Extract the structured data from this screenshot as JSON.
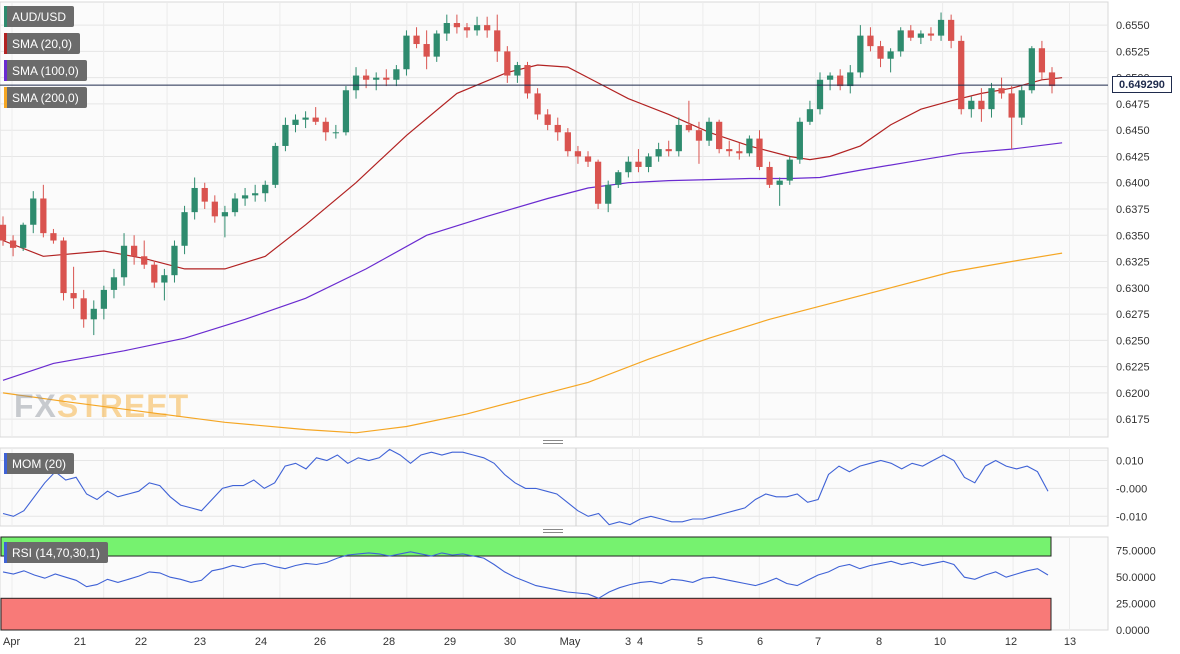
{
  "chart_data": [
    {
      "type": "candlestick",
      "symbol": "AUD/USD",
      "last_price": "0.649290",
      "y_ticks": [
        "0.6550",
        "0.6525",
        "0.6500",
        "0.6475",
        "0.6450",
        "0.6425",
        "0.6400",
        "0.6375",
        "0.6350",
        "0.6325",
        "0.6300",
        "0.6275",
        "0.6250",
        "0.6225",
        "0.6200",
        "0.6175"
      ],
      "ylim": [
        0.6158,
        0.6572
      ],
      "x_ticks": [
        "Apr",
        "21",
        "22",
        "23",
        "24",
        "26",
        "28",
        "29",
        "30",
        "May",
        "3",
        "4",
        "5",
        "6",
        "7",
        "8",
        "10",
        "12",
        "13"
      ],
      "candles": [
        [
          0.636,
          0.6368,
          0.634,
          0.6345
        ],
        [
          0.6345,
          0.635,
          0.633,
          0.6338
        ],
        [
          0.6338,
          0.6362,
          0.6335,
          0.636
        ],
        [
          0.636,
          0.6392,
          0.6352,
          0.6385
        ],
        [
          0.6385,
          0.6398,
          0.6348,
          0.6352
        ],
        [
          0.6352,
          0.6356,
          0.6342,
          0.6345
        ],
        [
          0.6345,
          0.6348,
          0.6288,
          0.6295
        ],
        [
          0.6295,
          0.632,
          0.628,
          0.629
        ],
        [
          0.629,
          0.6298,
          0.6262,
          0.627
        ],
        [
          0.627,
          0.6288,
          0.6255,
          0.628
        ],
        [
          0.628,
          0.6302,
          0.627,
          0.6298
        ],
        [
          0.6298,
          0.6318,
          0.629,
          0.631
        ],
        [
          0.631,
          0.6352,
          0.6302,
          0.634
        ],
        [
          0.634,
          0.635,
          0.6322,
          0.633
        ],
        [
          0.633,
          0.6345,
          0.6318,
          0.6322
        ],
        [
          0.6322,
          0.6326,
          0.63,
          0.6305
        ],
        [
          0.6305,
          0.6318,
          0.6288,
          0.6312
        ],
        [
          0.6312,
          0.6345,
          0.6305,
          0.634
        ],
        [
          0.634,
          0.6378,
          0.6332,
          0.6372
        ],
        [
          0.6372,
          0.6405,
          0.6365,
          0.6395
        ],
        [
          0.6395,
          0.64,
          0.6375,
          0.6382
        ],
        [
          0.6382,
          0.6388,
          0.6362,
          0.6368
        ],
        [
          0.6368,
          0.6378,
          0.6348,
          0.6372
        ],
        [
          0.6372,
          0.639,
          0.6368,
          0.6385
        ],
        [
          0.6385,
          0.6395,
          0.6378,
          0.6388
        ],
        [
          0.6388,
          0.6398,
          0.6382,
          0.639
        ],
        [
          0.639,
          0.6402,
          0.6382,
          0.6398
        ],
        [
          0.6398,
          0.6438,
          0.6395,
          0.6435
        ],
        [
          0.6435,
          0.6462,
          0.643,
          0.6455
        ],
        [
          0.6455,
          0.6465,
          0.6448,
          0.646
        ],
        [
          0.646,
          0.6468,
          0.6452,
          0.6462
        ],
        [
          0.6462,
          0.6472,
          0.6455,
          0.6458
        ],
        [
          0.6458,
          0.6462,
          0.644,
          0.6448
        ],
        [
          0.6448,
          0.6455,
          0.6442,
          0.6448
        ],
        [
          0.6448,
          0.6492,
          0.6445,
          0.6488
        ],
        [
          0.6488,
          0.651,
          0.648,
          0.6502
        ],
        [
          0.6502,
          0.6508,
          0.649,
          0.6498
        ],
        [
          0.6498,
          0.6505,
          0.6488,
          0.65
        ],
        [
          0.65,
          0.6508,
          0.6492,
          0.6498
        ],
        [
          0.6498,
          0.6512,
          0.6492,
          0.6508
        ],
        [
          0.6508,
          0.6545,
          0.6502,
          0.654
        ],
        [
          0.654,
          0.6548,
          0.6528,
          0.6532
        ],
        [
          0.6532,
          0.6545,
          0.6508,
          0.652
        ],
        [
          0.652,
          0.6545,
          0.6515,
          0.6542
        ],
        [
          0.6542,
          0.656,
          0.6535,
          0.6552
        ],
        [
          0.6552,
          0.656,
          0.6542,
          0.6548
        ],
        [
          0.6548,
          0.6552,
          0.6538,
          0.6545
        ],
        [
          0.6545,
          0.6558,
          0.654,
          0.655
        ],
        [
          0.655,
          0.6558,
          0.6538,
          0.6545
        ],
        [
          0.6545,
          0.656,
          0.6515,
          0.6525
        ],
        [
          0.6525,
          0.653,
          0.6495,
          0.6502
        ],
        [
          0.6502,
          0.6515,
          0.6495,
          0.6512
        ],
        [
          0.6512,
          0.6515,
          0.648,
          0.6485
        ],
        [
          0.6485,
          0.649,
          0.646,
          0.6465
        ],
        [
          0.6465,
          0.647,
          0.645,
          0.6455
        ],
        [
          0.6455,
          0.6462,
          0.644,
          0.6448
        ],
        [
          0.6448,
          0.6452,
          0.6425,
          0.643
        ],
        [
          0.643,
          0.6435,
          0.6418,
          0.6425
        ],
        [
          0.6425,
          0.643,
          0.6415,
          0.642
        ],
        [
          0.642,
          0.6422,
          0.6375,
          0.638
        ],
        [
          0.638,
          0.6402,
          0.6372,
          0.6398
        ],
        [
          0.6398,
          0.6412,
          0.6395,
          0.641
        ],
        [
          0.641,
          0.6425,
          0.6405,
          0.642
        ],
        [
          0.642,
          0.6432,
          0.641,
          0.6415
        ],
        [
          0.6415,
          0.6428,
          0.641,
          0.6425
        ],
        [
          0.6425,
          0.6438,
          0.642,
          0.6432
        ],
        [
          0.6432,
          0.644,
          0.6425,
          0.643
        ],
        [
          0.643,
          0.6462,
          0.6425,
          0.6455
        ],
        [
          0.6455,
          0.6478,
          0.6448,
          0.645
        ],
        [
          0.645,
          0.6458,
          0.6418,
          0.644
        ],
        [
          0.644,
          0.6462,
          0.6435,
          0.6458
        ],
        [
          0.6458,
          0.646,
          0.6428,
          0.6432
        ],
        [
          0.6432,
          0.644,
          0.6425,
          0.643
        ],
        [
          0.643,
          0.6438,
          0.6422,
          0.6428
        ],
        [
          0.6428,
          0.6445,
          0.6425,
          0.6442
        ],
        [
          0.6442,
          0.645,
          0.6412,
          0.6415
        ],
        [
          0.6415,
          0.642,
          0.6395,
          0.6398
        ],
        [
          0.6398,
          0.6405,
          0.6378,
          0.6402
        ],
        [
          0.6402,
          0.6425,
          0.6398,
          0.6422
        ],
        [
          0.6422,
          0.6462,
          0.6418,
          0.6458
        ],
        [
          0.6458,
          0.6478,
          0.6455,
          0.647
        ],
        [
          0.647,
          0.6505,
          0.6465,
          0.6498
        ],
        [
          0.6498,
          0.6505,
          0.6488,
          0.6502
        ],
        [
          0.6502,
          0.6508,
          0.6488,
          0.6492
        ],
        [
          0.6492,
          0.6512,
          0.6485,
          0.6505
        ],
        [
          0.6505,
          0.655,
          0.65,
          0.654
        ],
        [
          0.654,
          0.6548,
          0.6525,
          0.653
        ],
        [
          0.653,
          0.6535,
          0.651,
          0.6518
        ],
        [
          0.6518,
          0.6528,
          0.6505,
          0.6525
        ],
        [
          0.6525,
          0.6548,
          0.652,
          0.6545
        ],
        [
          0.6545,
          0.655,
          0.6535,
          0.6538
        ],
        [
          0.6538,
          0.6545,
          0.6532,
          0.6542
        ],
        [
          0.6542,
          0.6548,
          0.6535,
          0.654
        ],
        [
          0.654,
          0.6562,
          0.6535,
          0.6555
        ],
        [
          0.6555,
          0.656,
          0.6528,
          0.6535
        ],
        [
          0.6535,
          0.654,
          0.6465,
          0.647
        ],
        [
          0.647,
          0.6482,
          0.6462,
          0.6478
        ],
        [
          0.6478,
          0.649,
          0.6458,
          0.647
        ],
        [
          0.647,
          0.6495,
          0.6462,
          0.649
        ],
        [
          0.649,
          0.65,
          0.648,
          0.6485
        ],
        [
          0.6485,
          0.6492,
          0.6432,
          0.6462
        ],
        [
          0.6462,
          0.6492,
          0.6455,
          0.6488
        ],
        [
          0.6488,
          0.653,
          0.6485,
          0.6528
        ],
        [
          0.6528,
          0.6535,
          0.6498,
          0.6505
        ],
        [
          0.6505,
          0.651,
          0.6485,
          0.6492
        ]
      ],
      "sma": [
        {
          "name": "SMA (20,0)",
          "color": "#b22222",
          "points": [
            [
              0,
              0.6345
            ],
            [
              4,
              0.633
            ],
            [
              10,
              0.6335
            ],
            [
              14,
              0.6328
            ],
            [
              18,
              0.6318
            ],
            [
              22,
              0.6318
            ],
            [
              26,
              0.633
            ],
            [
              30,
              0.636
            ],
            [
              35,
              0.64
            ],
            [
              40,
              0.6445
            ],
            [
              45,
              0.6485
            ],
            [
              50,
              0.6505
            ],
            [
              53,
              0.6512
            ],
            [
              56,
              0.651
            ],
            [
              59,
              0.6495
            ],
            [
              62,
              0.648
            ],
            [
              66,
              0.6465
            ],
            [
              70,
              0.6448
            ],
            [
              74,
              0.6435
            ],
            [
              78,
              0.6425
            ],
            [
              80,
              0.6422
            ],
            [
              82,
              0.6425
            ],
            [
              85,
              0.6435
            ],
            [
              88,
              0.6455
            ],
            [
              91,
              0.647
            ],
            [
              94,
              0.6478
            ],
            [
              97,
              0.6485
            ],
            [
              100,
              0.649
            ],
            [
              103,
              0.6498
            ],
            [
              105,
              0.65
            ]
          ]
        },
        {
          "name": "SMA (100,0)",
          "color": "#6a2bd0",
          "points": [
            [
              0,
              0.6212
            ],
            [
              5,
              0.6228
            ],
            [
              12,
              0.624
            ],
            [
              18,
              0.6252
            ],
            [
              24,
              0.627
            ],
            [
              30,
              0.629
            ],
            [
              36,
              0.6318
            ],
            [
              42,
              0.635
            ],
            [
              48,
              0.6368
            ],
            [
              54,
              0.6385
            ],
            [
              58,
              0.6395
            ],
            [
              62,
              0.64
            ],
            [
              66,
              0.6402
            ],
            [
              70,
              0.6403
            ],
            [
              74,
              0.6404
            ],
            [
              78,
              0.6404
            ],
            [
              81,
              0.6405
            ],
            [
              85,
              0.6412
            ],
            [
              90,
              0.642
            ],
            [
              95,
              0.6428
            ],
            [
              100,
              0.6432
            ],
            [
              105,
              0.6438
            ]
          ]
        },
        {
          "name": "SMA (200,0)",
          "color": "#f5a623",
          "points": [
            [
              0,
              0.62
            ],
            [
              6,
              0.6192
            ],
            [
              14,
              0.6182
            ],
            [
              22,
              0.6172
            ],
            [
              30,
              0.6165
            ],
            [
              35,
              0.6162
            ],
            [
              40,
              0.6168
            ],
            [
              46,
              0.618
            ],
            [
              52,
              0.6195
            ],
            [
              58,
              0.621
            ],
            [
              64,
              0.6232
            ],
            [
              70,
              0.6252
            ],
            [
              76,
              0.627
            ],
            [
              82,
              0.6285
            ],
            [
              88,
              0.63
            ],
            [
              94,
              0.6315
            ],
            [
              100,
              0.6325
            ],
            [
              105,
              0.6333
            ]
          ]
        }
      ]
    },
    {
      "type": "line",
      "name": "MOM (20)",
      "y_ticks": [
        "0.010",
        "-0.000",
        "-0.010"
      ],
      "ylim": [
        -0.0135,
        0.0145
      ],
      "values": [
        -0.009,
        -0.01,
        -0.008,
        -0.003,
        0.002,
        0.006,
        0.003,
        0.004,
        -0.002,
        -0.004,
        -0.001,
        -0.003,
        -0.002,
        -0.001,
        0.002,
        0.001,
        -0.003,
        -0.006,
        -0.007,
        -0.008,
        -0.004,
        0.0,
        0.001,
        0.001,
        0.003,
        0.0,
        0.002,
        0.008,
        0.009,
        0.007,
        0.011,
        0.01,
        0.012,
        0.009,
        0.011,
        0.01,
        0.011,
        0.014,
        0.012,
        0.009,
        0.012,
        0.013,
        0.012,
        0.013,
        0.013,
        0.012,
        0.011,
        0.009,
        0.005,
        0.002,
        0.0,
        0.0,
        -0.001,
        -0.002,
        -0.005,
        -0.008,
        -0.01,
        -0.009,
        -0.013,
        -0.012,
        -0.013,
        -0.011,
        -0.01,
        -0.011,
        -0.012,
        -0.012,
        -0.011,
        -0.011,
        -0.01,
        -0.009,
        -0.008,
        -0.007,
        -0.004,
        -0.002,
        -0.003,
        -0.003,
        -0.002,
        -0.005,
        -0.004,
        0.005,
        0.008,
        0.006,
        0.008,
        0.009,
        0.01,
        0.009,
        0.007,
        0.009,
        0.008,
        0.01,
        0.012,
        0.01,
        0.004,
        0.002,
        0.008,
        0.01,
        0.008,
        0.007,
        0.008,
        0.006,
        -0.001
      ]
    },
    {
      "type": "line",
      "name": "RSI (14,70,30,1)",
      "y_ticks": [
        "75.0000",
        "50.0000",
        "25.0000",
        "0.0000"
      ],
      "ylim": [
        0,
        88
      ],
      "overbought": 70,
      "oversold": 30,
      "values": [
        55,
        53,
        56,
        52,
        49,
        53,
        50,
        47,
        41,
        43,
        48,
        45,
        48,
        51,
        55,
        54,
        50,
        48,
        45,
        47,
        56,
        58,
        61,
        59,
        62,
        63,
        60,
        58,
        61,
        63,
        62,
        64,
        68,
        71,
        72,
        73,
        72,
        70,
        72,
        74,
        72,
        70,
        73,
        71,
        72,
        70,
        68,
        62,
        55,
        50,
        46,
        42,
        40,
        38,
        36,
        35,
        34,
        30,
        36,
        40,
        43,
        45,
        46,
        44,
        48,
        47,
        45,
        49,
        50,
        48,
        46,
        44,
        42,
        45,
        49,
        44,
        42,
        47,
        52,
        55,
        60,
        62,
        58,
        61,
        63,
        65,
        62,
        64,
        61,
        63,
        65,
        62,
        50,
        48,
        52,
        55,
        50,
        53,
        56,
        58,
        52
      ]
    },
    {
      "type": "axis",
      "x_ticks": [
        "Apr",
        "21",
        "22",
        "23",
        "24",
        "26",
        "28",
        "29",
        "30",
        "May",
        "3",
        "4",
        "5",
        "6",
        "7",
        "8",
        "10",
        "12",
        "13"
      ]
    }
  ],
  "legends": {
    "main": "AUD/USD",
    "sma20": "SMA (20,0)",
    "sma100": "SMA (100,0)",
    "sma200": "SMA (200,0)",
    "mom": "MOM (20)",
    "rsi": "RSI (14,70,30,1)"
  },
  "watermark": {
    "fx": "FX",
    "street": "STREET"
  },
  "colors": {
    "up": "#2e8b6e",
    "down": "#d9534f",
    "mom": "#3f62d6",
    "rsi": "#3f62d6",
    "rsi_overbought": "#76f26f",
    "rsi_oversold": "#f87a78",
    "grid": "#e6e6e6"
  }
}
